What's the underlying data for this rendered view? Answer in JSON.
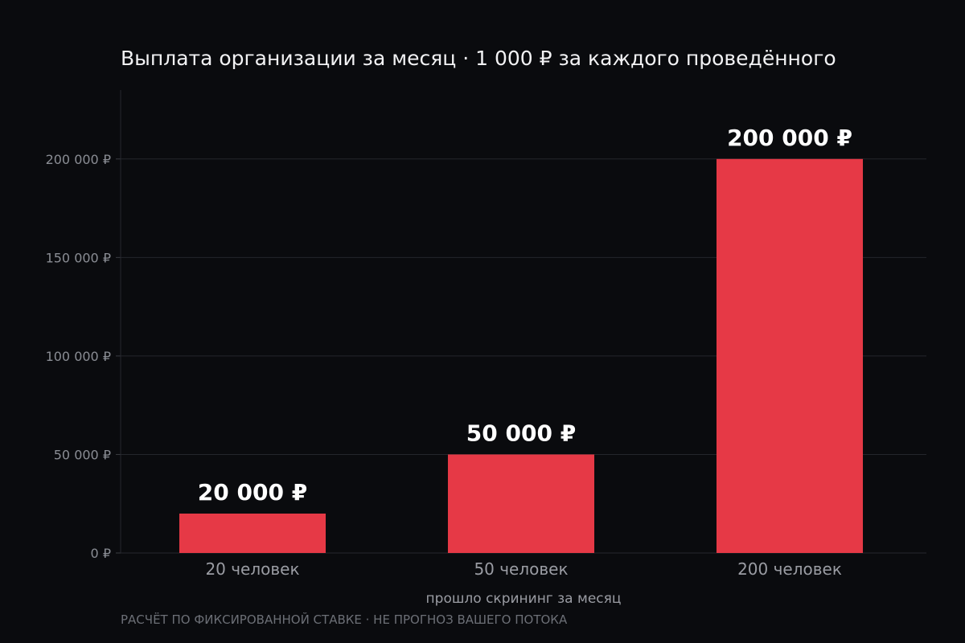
{
  "chart_data": {
    "type": "bar",
    "title": "Выплата организации за месяц · 1 000 ₽ за каждого проведённого",
    "categories": [
      "20 человек",
      "50 человек",
      "200 человек"
    ],
    "values": [
      20000,
      50000,
      200000
    ],
    "data_labels": [
      "20 000 ₽",
      "50 000 ₽",
      "200 000 ₽"
    ],
    "xlabel": "прошло скрининг за месяц",
    "ylabel": "",
    "ylim": [
      0,
      235000
    ],
    "yticks": [
      0,
      50000,
      100000,
      150000,
      200000
    ],
    "ytick_labels": [
      "0 ₽",
      "50 000 ₽",
      "100 000 ₽",
      "150 000 ₽",
      "200 000 ₽"
    ],
    "grid": true,
    "legend": "none",
    "colors": {
      "bar": "#e63946",
      "background": "#0a0b0e",
      "grid": "#24262c"
    }
  },
  "footnote": "РАСЧЁТ ПО ФИКСИРОВАННОЙ СТАВКЕ · НЕ ПРОГНОЗ ВАШЕГО ПОТОКА"
}
